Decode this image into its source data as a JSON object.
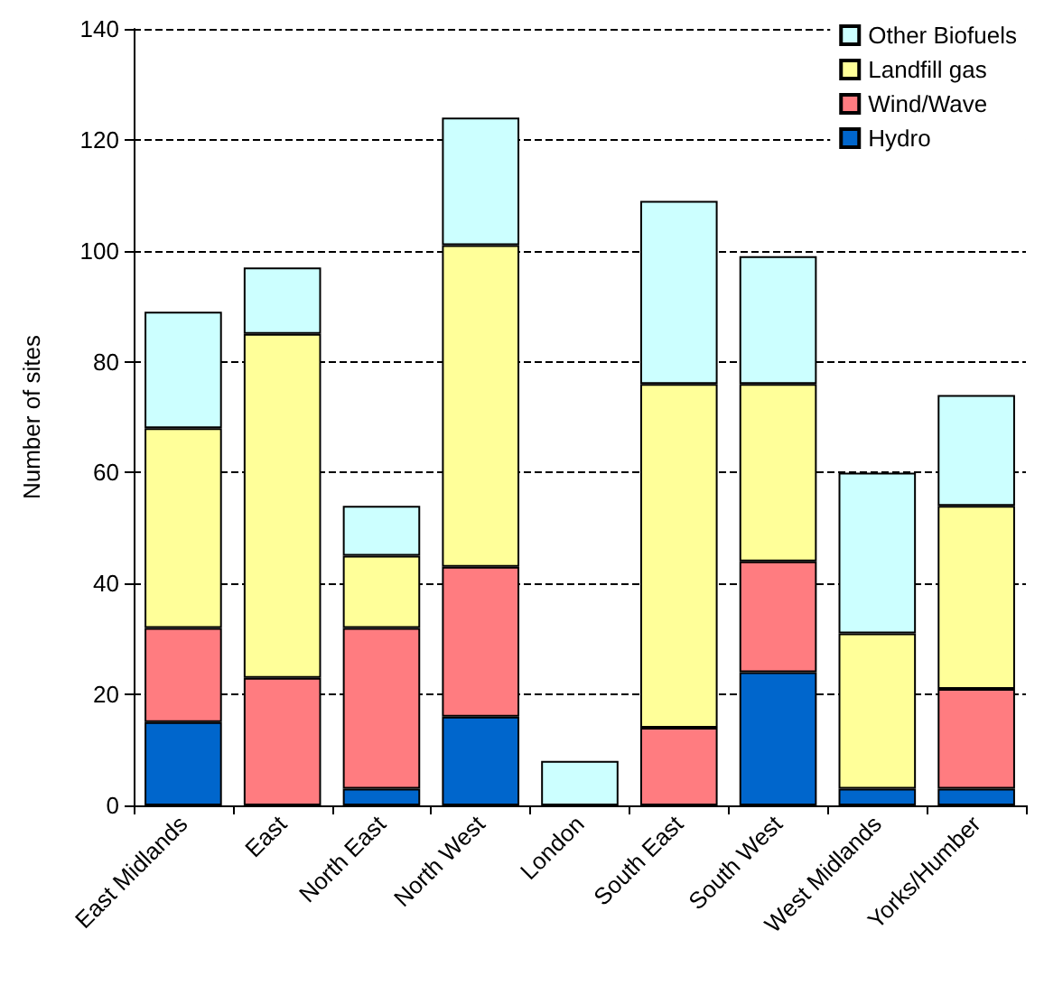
{
  "chart_data": {
    "type": "bar",
    "stacked": true,
    "ylabel": "Number of sites",
    "categories": [
      "East Midlands",
      "East",
      "North East",
      "North West",
      "London",
      "South East",
      "South West",
      "West Midlands",
      "Yorks/Humber"
    ],
    "series": [
      {
        "name": "Hydro",
        "color": "#0066cc",
        "values": [
          15,
          0,
          3,
          16,
          0,
          0,
          24,
          3,
          3
        ]
      },
      {
        "name": "Wind/Wave",
        "color": "#ff7c80",
        "values": [
          17,
          23,
          29,
          27,
          0,
          14,
          20,
          0,
          18
        ]
      },
      {
        "name": "Landfill gas",
        "color": "#ffff99",
        "values": [
          36,
          62,
          13,
          58,
          0,
          62,
          32,
          28,
          33
        ]
      },
      {
        "name": "Other Biofuels",
        "color": "#ccffff",
        "values": [
          21,
          12,
          9,
          23,
          8,
          33,
          23,
          29,
          20
        ]
      }
    ],
    "ylim": [
      0,
      140
    ],
    "yticks": [
      0,
      20,
      40,
      60,
      80,
      100,
      120,
      140
    ],
    "grid": "y",
    "legend": "top right"
  }
}
